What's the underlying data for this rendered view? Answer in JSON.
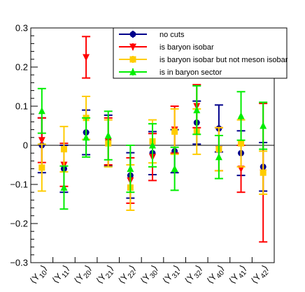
{
  "chart_data": {
    "type": "scatter",
    "title": "",
    "xlabel": "",
    "ylabel": "",
    "ylim": [
      -0.3,
      0.3
    ],
    "yticks": [
      "−0.3",
      "−0.2",
      "−0.1",
      "0",
      "0.1",
      "0.2",
      "0.3"
    ],
    "categories": [
      "⟨Y10⟩",
      "⟨Y11⟩",
      "⟨Y20⟩",
      "⟨Y21⟩",
      "⟨Y22⟩",
      "⟨Y30⟩",
      "⟨Y31⟩",
      "⟨Y32⟩",
      "⟨Y40⟩",
      "⟨Y41⟩",
      "⟨Y42⟩"
    ],
    "category_parts": [
      {
        "base": "⟨Y",
        "sub": "10",
        "end": "⟩"
      },
      {
        "base": "⟨Y",
        "sub": "11",
        "end": "⟩"
      },
      {
        "base": "⟨Y",
        "sub": "20",
        "end": "⟩"
      },
      {
        "base": "⟨Y",
        "sub": "21",
        "end": "⟩"
      },
      {
        "base": "⟨Y",
        "sub": "22",
        "end": "⟩"
      },
      {
        "base": "⟨Y",
        "sub": "30",
        "end": "⟩"
      },
      {
        "base": "⟨Y",
        "sub": "31",
        "end": "⟩"
      },
      {
        "base": "⟨Y",
        "sub": "32",
        "end": "⟩"
      },
      {
        "base": "⟨Y",
        "sub": "40",
        "end": "⟩"
      },
      {
        "base": "⟨Y",
        "sub": "41",
        "end": "⟩"
      },
      {
        "base": "⟨Y",
        "sub": "42",
        "end": "⟩"
      }
    ],
    "zero_line": true,
    "grid": false,
    "legend_position": "top-right",
    "series": [
      {
        "name": "no cuts",
        "color": "#00008b",
        "marker": "circle",
        "values": [
          0.0,
          -0.06,
          0.033,
          0.012,
          -0.077,
          -0.02,
          -0.015,
          0.058,
          0.043,
          -0.02,
          -0.055
        ],
        "errors": [
          0.07,
          0.06,
          0.057,
          0.065,
          0.058,
          0.055,
          0.055,
          0.055,
          0.06,
          0.057,
          0.062
        ]
      },
      {
        "name": "is baryon isobar",
        "color": "#ff0000",
        "marker": "triangle-down",
        "values": [
          0.013,
          -0.05,
          0.225,
          0.01,
          -0.09,
          -0.03,
          0.04,
          0.1,
          -0.01,
          -0.06,
          -0.07
        ],
        "errors": [
          0.057,
          0.055,
          0.053,
          0.06,
          0.058,
          0.06,
          0.06,
          0.055,
          0.055,
          0.06,
          0.177
        ]
      },
      {
        "name": "is baryon isobar but not meson isobar",
        "color": "#ffcc00",
        "marker": "square",
        "values": [
          -0.057,
          -0.01,
          0.07,
          0.005,
          -0.108,
          0.01,
          0.035,
          0.035,
          -0.01,
          0.005,
          -0.07
        ],
        "errors": [
          0.06,
          0.058,
          0.055,
          0.06,
          0.058,
          0.055,
          0.058,
          0.058,
          0.055,
          0.06,
          0.055
        ]
      },
      {
        "name": "is in baryon sector",
        "color": "#00ee00",
        "marker": "triangle-up",
        "values": [
          0.088,
          -0.108,
          0.02,
          0.025,
          -0.06,
          0.0,
          -0.06,
          0.09,
          -0.03,
          0.075,
          0.05
        ],
        "errors": [
          0.057,
          0.055,
          0.05,
          0.062,
          0.06,
          0.055,
          0.055,
          0.062,
          0.055,
          0.062,
          0.06
        ]
      }
    ]
  }
}
